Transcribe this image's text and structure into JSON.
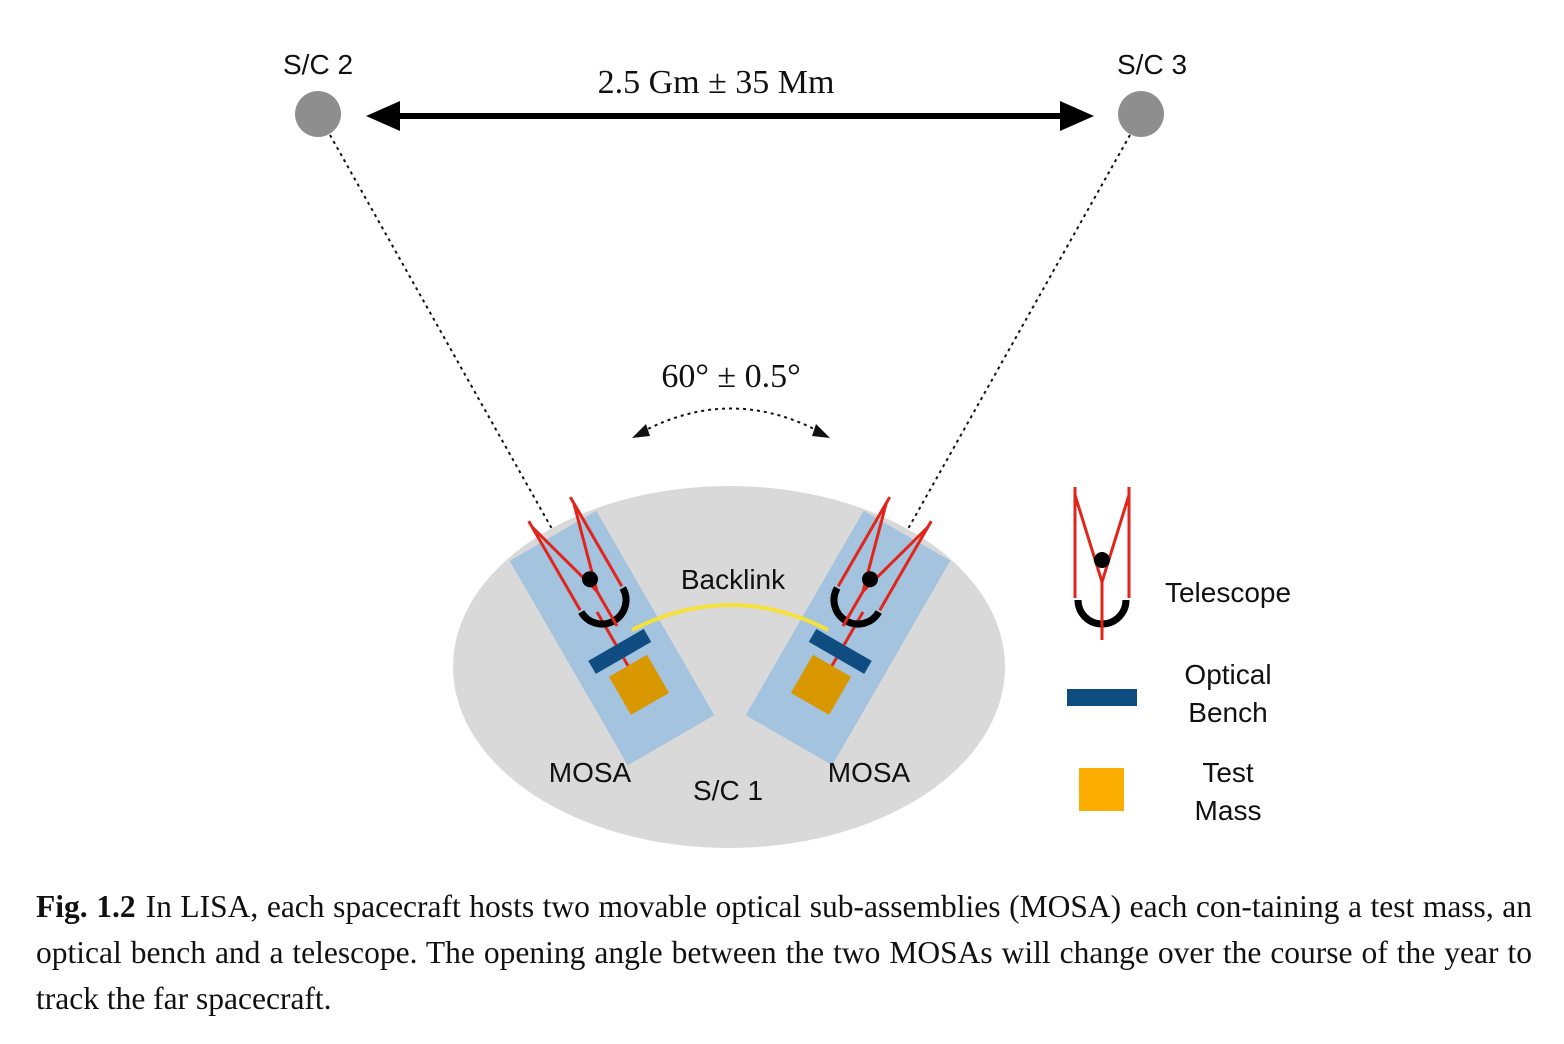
{
  "diagram": {
    "spacecraft": {
      "sc2": "S/C 2",
      "sc3": "S/C 3",
      "sc1": "S/C 1"
    },
    "arm_length": "2.5 Gm ± 35 Mm",
    "opening_angle": "60° ± 0.5°",
    "backlink": "Backlink",
    "mosa_left": "MOSA",
    "mosa_right": "MOSA",
    "legend": {
      "telescope": "Telescope",
      "optical_bench_line1": "Optical",
      "optical_bench_line2": "Bench",
      "test_mass_line1": "Test",
      "test_mass_line2": "Mass"
    },
    "colors": {
      "spacecraft_node": "#8e8e8e",
      "spacecraft_body": "#d9d9d9",
      "mosa_panel": "#a3c3df",
      "optical_bench": "#0f4c81",
      "test_mass": "#d99800",
      "test_mass_legend": "#fbad00",
      "telescope": "#e1251b",
      "backlink": "#f5e13c"
    }
  },
  "caption": {
    "label": "Fig. 1.2",
    "text": "In LISA, each spacecraft hosts two movable optical sub-assemblies (MOSA) each con-taining a test mass, an optical bench and a telescope. The opening angle between the two MOSAs will change over the course of the year to track the far spacecraft."
  }
}
